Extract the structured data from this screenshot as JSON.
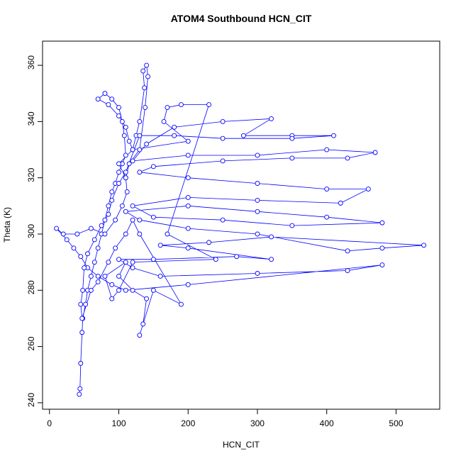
{
  "chart_data": {
    "type": "line",
    "marker": "circle",
    "title": "ATOM4 Southbound HCN_CIT",
    "x_label": "HCN_CIT",
    "y_label": "Theta (K)",
    "color": "#0000ff",
    "xlim": [
      -10,
      563
    ],
    "ylim": [
      237.7,
      368.6
    ],
    "xticks": [
      0,
      100,
      200,
      300,
      400,
      500
    ],
    "yticks": [
      240,
      260,
      280,
      300,
      320,
      340,
      360
    ],
    "x": [
      43,
      44,
      45,
      47,
      48,
      52,
      55,
      60,
      65,
      70,
      75,
      80,
      85,
      90,
      95,
      100,
      105,
      110,
      108,
      105,
      100,
      90,
      80,
      70,
      85,
      100,
      110,
      115,
      120,
      125,
      130,
      137,
      135,
      140,
      142,
      138,
      130,
      115,
      110,
      112,
      105,
      95,
      80,
      60,
      40,
      20,
      10,
      25,
      35,
      45,
      55,
      70,
      90,
      110,
      200,
      480,
      430,
      300,
      160,
      120,
      100,
      150,
      270,
      320,
      200,
      160,
      230,
      320,
      540,
      480,
      430,
      300,
      200,
      130,
      110,
      200,
      300,
      400,
      480,
      350,
      250,
      150,
      120,
      200,
      300,
      420,
      460,
      400,
      300,
      200,
      130,
      150,
      250,
      350,
      430,
      470,
      400,
      300,
      200,
      120,
      140,
      180,
      250,
      320,
      280,
      350,
      410,
      350,
      250,
      180,
      130,
      110,
      100,
      90,
      85,
      75,
      65,
      55,
      50,
      48,
      45,
      47,
      60,
      70,
      85,
      95,
      110,
      120,
      130,
      190,
      150,
      130,
      135,
      140,
      120,
      100,
      110,
      80,
      90,
      100,
      120,
      240,
      170,
      230,
      190,
      170,
      165,
      200,
      120,
      100,
      110
    ],
    "values": [
      243,
      245,
      254,
      265,
      270,
      275,
      280,
      285,
      290,
      295,
      300,
      305,
      310,
      315,
      318,
      322,
      325,
      328,
      335,
      340,
      345,
      348,
      350,
      348,
      346,
      342,
      338,
      333,
      330,
      335,
      340,
      352,
      358,
      360,
      356,
      345,
      330,
      325,
      320,
      315,
      310,
      305,
      300,
      302,
      300,
      300,
      302,
      298,
      295,
      292,
      288,
      285,
      282,
      280,
      282,
      289,
      287,
      286,
      285,
      288,
      291,
      291,
      292,
      291,
      295,
      296,
      297,
      299,
      296,
      295,
      294,
      300,
      302,
      305,
      308,
      310,
      308,
      306,
      304,
      303,
      305,
      306,
      310,
      313,
      312,
      311,
      316,
      316,
      318,
      320,
      322,
      324,
      326,
      327,
      327,
      329,
      330,
      328,
      328,
      326,
      332,
      338,
      340,
      341,
      335,
      335,
      335,
      334,
      334,
      335,
      335,
      322,
      318,
      312,
      307,
      303,
      298,
      293,
      288,
      280,
      275,
      270,
      280,
      283,
      290,
      295,
      300,
      305,
      300,
      275,
      280,
      264,
      268,
      277,
      280,
      285,
      290,
      285,
      277,
      280,
      290,
      291,
      300,
      346,
      346,
      345,
      340,
      333,
      330,
      325,
      320
    ]
  }
}
